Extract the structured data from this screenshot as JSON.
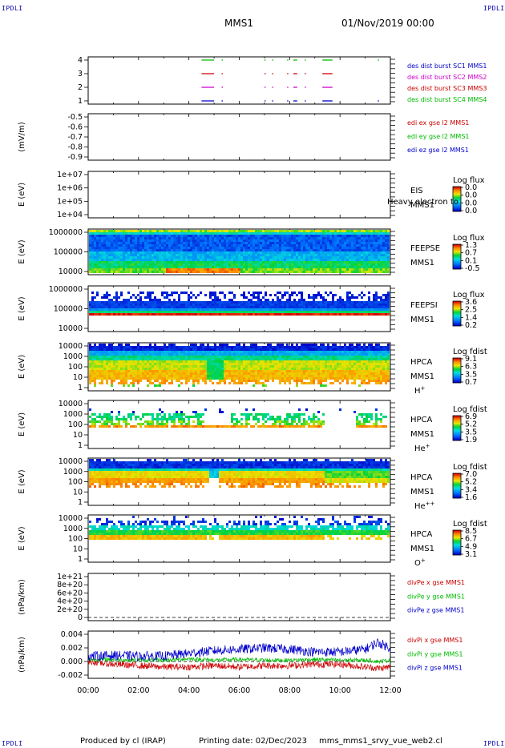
{
  "header": {
    "corner_left_top": "IPDLI",
    "corner_right_top": "IPDLI",
    "corner_left_bottom": "IPDLI",
    "corner_right_bottom": "IPDLI",
    "spacecraft": "MMS1",
    "datetime": "01/Nov/2019 00:00"
  },
  "footer": {
    "produced_by": "Produced by cl (IRAP)",
    "printing_date": "Printing date: 02/Dec/2023",
    "filename": "mms_mms1_srvy_vue_web2.cl"
  },
  "colors": {
    "mms1": "#0000cc",
    "mms2": "#cc00cc",
    "mms3": "#cc0000",
    "mms4": "#00bb00"
  },
  "chart_data": [
    {
      "type": "line",
      "panel": "burst",
      "xlabel": "",
      "ylabel": "",
      "yticks": [
        "4",
        "3",
        "2",
        "1"
      ],
      "ylim": [
        0.6,
        4.4
      ],
      "legend": [
        {
          "text": "des dist burst SC1 MMS1",
          "color": "#0000cc"
        },
        {
          "text": "des dist burst SC2 MMS2",
          "color": "#cc00cc"
        },
        {
          "text": "des dist burst SC3 MMS3",
          "color": "#cc0000"
        },
        {
          "text": "des dist burst SC4 MMS4",
          "color": "#00bb00"
        }
      ],
      "series": [
        {
          "level": 4,
          "color": "#00bb00",
          "intervals_h": [
            [
              4.5,
              5.0
            ],
            [
              5.3,
              5.35
            ],
            [
              7.0,
              7.03
            ],
            [
              7.3,
              7.33
            ],
            [
              7.9,
              7.93
            ],
            [
              8.15,
              8.3
            ],
            [
              8.6,
              8.63
            ],
            [
              9.3,
              9.7
            ],
            [
              11.5,
              11.53
            ]
          ]
        },
        {
          "level": 3,
          "color": "#cc0000",
          "intervals_h": [
            [
              4.5,
              5.0
            ],
            [
              5.3,
              5.35
            ],
            [
              7.0,
              7.03
            ],
            [
              7.3,
              7.33
            ],
            [
              7.9,
              7.93
            ],
            [
              8.15,
              8.3
            ],
            [
              8.6,
              8.63
            ],
            [
              9.3,
              9.7
            ]
          ]
        },
        {
          "level": 2,
          "color": "#cc00cc",
          "intervals_h": [
            [
              4.5,
              5.0
            ],
            [
              5.3,
              5.35
            ],
            [
              7.0,
              7.03
            ],
            [
              7.3,
              7.33
            ],
            [
              7.9,
              7.93
            ],
            [
              8.15,
              8.3
            ],
            [
              8.6,
              8.63
            ],
            [
              9.3,
              9.7
            ]
          ]
        },
        {
          "level": 1,
          "color": "#0000cc",
          "intervals_h": [
            [
              4.5,
              5.0
            ],
            [
              5.3,
              5.35
            ],
            [
              7.0,
              7.03
            ],
            [
              7.3,
              7.33
            ],
            [
              7.9,
              7.93
            ],
            [
              8.15,
              8.3
            ],
            [
              8.6,
              8.63
            ],
            [
              9.3,
              9.7
            ],
            [
              11.5,
              11.53
            ]
          ]
        }
      ]
    },
    {
      "type": "line",
      "panel": "edi",
      "ylabel": "(mV/m)",
      "yticks": [
        "-0.5",
        "-0.6",
        "-0.7",
        "-0.8",
        "-0.9"
      ],
      "ylim": [
        -0.9,
        -0.45
      ],
      "legend": [
        {
          "text": "edi ex gse l2 MMS1",
          "color": "#cc0000"
        },
        {
          "text": "edi ey gse l2 MMS1",
          "color": "#00bb00"
        },
        {
          "text": "edi ez gse l2 MMS1",
          "color": "#0000cc"
        }
      ]
    },
    {
      "type": "heatmap",
      "panel": "eis",
      "ylabel": "E (eV)",
      "yticks": [
        "1e+07",
        "1e+06",
        "1e+05",
        "1e+04"
      ],
      "ylim": [
        10000,
        10000000
      ],
      "labels": [
        "EIS",
        "MMS1"
      ],
      "overlay_text": "Heavy electron to",
      "colorbar": {
        "title": "Log flux",
        "ticks": [
          "0.0",
          "0.0",
          "0.0",
          "0.0"
        ]
      }
    },
    {
      "type": "heatmap",
      "panel": "feepse",
      "ylabel": "E (eV)",
      "yticks": [
        "1000000",
        "100000",
        "10000"
      ],
      "ylim": [
        10000,
        1000000
      ],
      "labels": [
        "FEEPSE",
        "MMS1"
      ],
      "colorbar": {
        "title": "Log flux",
        "ticks": [
          "1.3",
          "0.7",
          "0.1",
          "-0.5"
        ]
      }
    },
    {
      "type": "heatmap",
      "panel": "feepsi",
      "ylabel": "E (eV)",
      "yticks": [
        "1000000",
        "100000",
        "10000"
      ],
      "ylim": [
        10000,
        1000000
      ],
      "labels": [
        "FEEPSI",
        "MMS1"
      ],
      "colorbar": {
        "title": "Log flux",
        "ticks": [
          "3.6",
          "2.5",
          "1.4",
          "0.2"
        ]
      }
    },
    {
      "type": "heatmap",
      "panel": "hpca_h",
      "ylabel": "E (eV)",
      "yticks": [
        "10000",
        "1000",
        "100",
        "10",
        "1"
      ],
      "ylim": [
        1,
        30000
      ],
      "labels": [
        "HPCA",
        "MMS1",
        "H+"
      ],
      "colorbar": {
        "title": "Log fdist",
        "ticks": [
          "9.1",
          "6.3",
          "3.5",
          "0.7"
        ]
      }
    },
    {
      "type": "heatmap",
      "panel": "hpca_he1",
      "ylabel": "E (eV)",
      "yticks": [
        "10000",
        "1000",
        "100",
        "10",
        "1"
      ],
      "ylim": [
        1,
        30000
      ],
      "labels": [
        "HPCA",
        "MMS1",
        "He+"
      ],
      "colorbar": {
        "title": "Log fdist",
        "ticks": [
          "6.9",
          "5.2",
          "3.5",
          "1.9"
        ]
      }
    },
    {
      "type": "heatmap",
      "panel": "hpca_he2",
      "ylabel": "E (eV)",
      "yticks": [
        "10000",
        "1000",
        "100",
        "10",
        "1"
      ],
      "ylim": [
        1,
        30000
      ],
      "labels": [
        "HPCA",
        "MMS1",
        "He++"
      ],
      "colorbar": {
        "title": "Log fdist",
        "ticks": [
          "7.0",
          "5.2",
          "3.4",
          "1.6"
        ]
      }
    },
    {
      "type": "heatmap",
      "panel": "hpca_o",
      "ylabel": "E (eV)",
      "yticks": [
        "10000",
        "1000",
        "100",
        "10",
        "1"
      ],
      "ylim": [
        1,
        30000
      ],
      "labels": [
        "HPCA",
        "MMS1",
        "O+"
      ],
      "colorbar": {
        "title": "Log fdist",
        "ticks": [
          "8.5",
          "6.7",
          "4.9",
          "3.1"
        ]
      }
    },
    {
      "type": "line",
      "panel": "divpe",
      "ylabel": "(nPa/km)",
      "yticks": [
        "1e+21",
        "8e+20",
        "6e+20",
        "4e+20",
        "2e+20",
        "0"
      ],
      "ylim": [
        -3e+19,
        1.06e+21
      ],
      "legend": [
        {
          "text": "divPe x gse MMS1",
          "color": "#cc0000"
        },
        {
          "text": "divPe y gse MMS1",
          "color": "#00bb00"
        },
        {
          "text": "divPe z gse MMS1",
          "color": "#0000cc"
        }
      ]
    },
    {
      "type": "line",
      "panel": "divpi",
      "ylabel": "(nPa/km)",
      "yticks": [
        "0.004",
        "0.002",
        "0.000",
        "-0.002"
      ],
      "ylim": [
        -0.0033,
        0.0043
      ],
      "xlabel": "",
      "xticks": [
        "00:00",
        "02:00",
        "04:00",
        "06:00",
        "08:00",
        "10:00",
        "12:00"
      ],
      "xlim_h": [
        0,
        12
      ],
      "legend": [
        {
          "text": "divPi x gse MMS1",
          "color": "#cc0000"
        },
        {
          "text": "divPi y gse MMS1",
          "color": "#00bb00"
        },
        {
          "text": "divPi z gse MMS1",
          "color": "#0000cc"
        }
      ],
      "series": [
        {
          "name": "divPi x gse MMS1",
          "color": "#cc0000",
          "x_h": [
            0,
            1,
            2,
            3,
            4,
            5,
            6,
            7,
            8,
            9,
            10,
            11,
            11.6,
            12
          ],
          "values": [
            0.0,
            -0.0004,
            -0.0006,
            -0.0008,
            -0.0008,
            -0.0006,
            -0.0008,
            -0.0006,
            -0.0006,
            -0.0004,
            -0.0004,
            -0.0008,
            -0.001,
            -0.0008
          ]
        },
        {
          "name": "divPi y gse MMS1",
          "color": "#00bb00",
          "x_h": [
            0,
            1,
            2,
            3,
            4,
            5,
            6,
            7,
            8,
            9,
            10,
            11,
            11.6,
            12
          ],
          "values": [
            0.0003,
            0.0003,
            0.0002,
            0.0002,
            0.0004,
            0.0002,
            0.0003,
            0.0002,
            0.0002,
            0.0003,
            0.0002,
            0.0002,
            0.0,
            0.0002
          ]
        },
        {
          "name": "divPi z gse MMS1",
          "color": "#0000cc",
          "x_h": [
            0,
            1,
            2,
            3,
            4,
            5,
            6,
            7,
            8,
            9,
            10,
            11,
            11.5,
            12
          ],
          "values": [
            0.0008,
            0.0009,
            0.0008,
            0.0008,
            0.0012,
            0.0016,
            0.0018,
            0.002,
            0.0018,
            0.0014,
            0.0014,
            0.0018,
            0.0028,
            0.002
          ]
        }
      ]
    }
  ]
}
